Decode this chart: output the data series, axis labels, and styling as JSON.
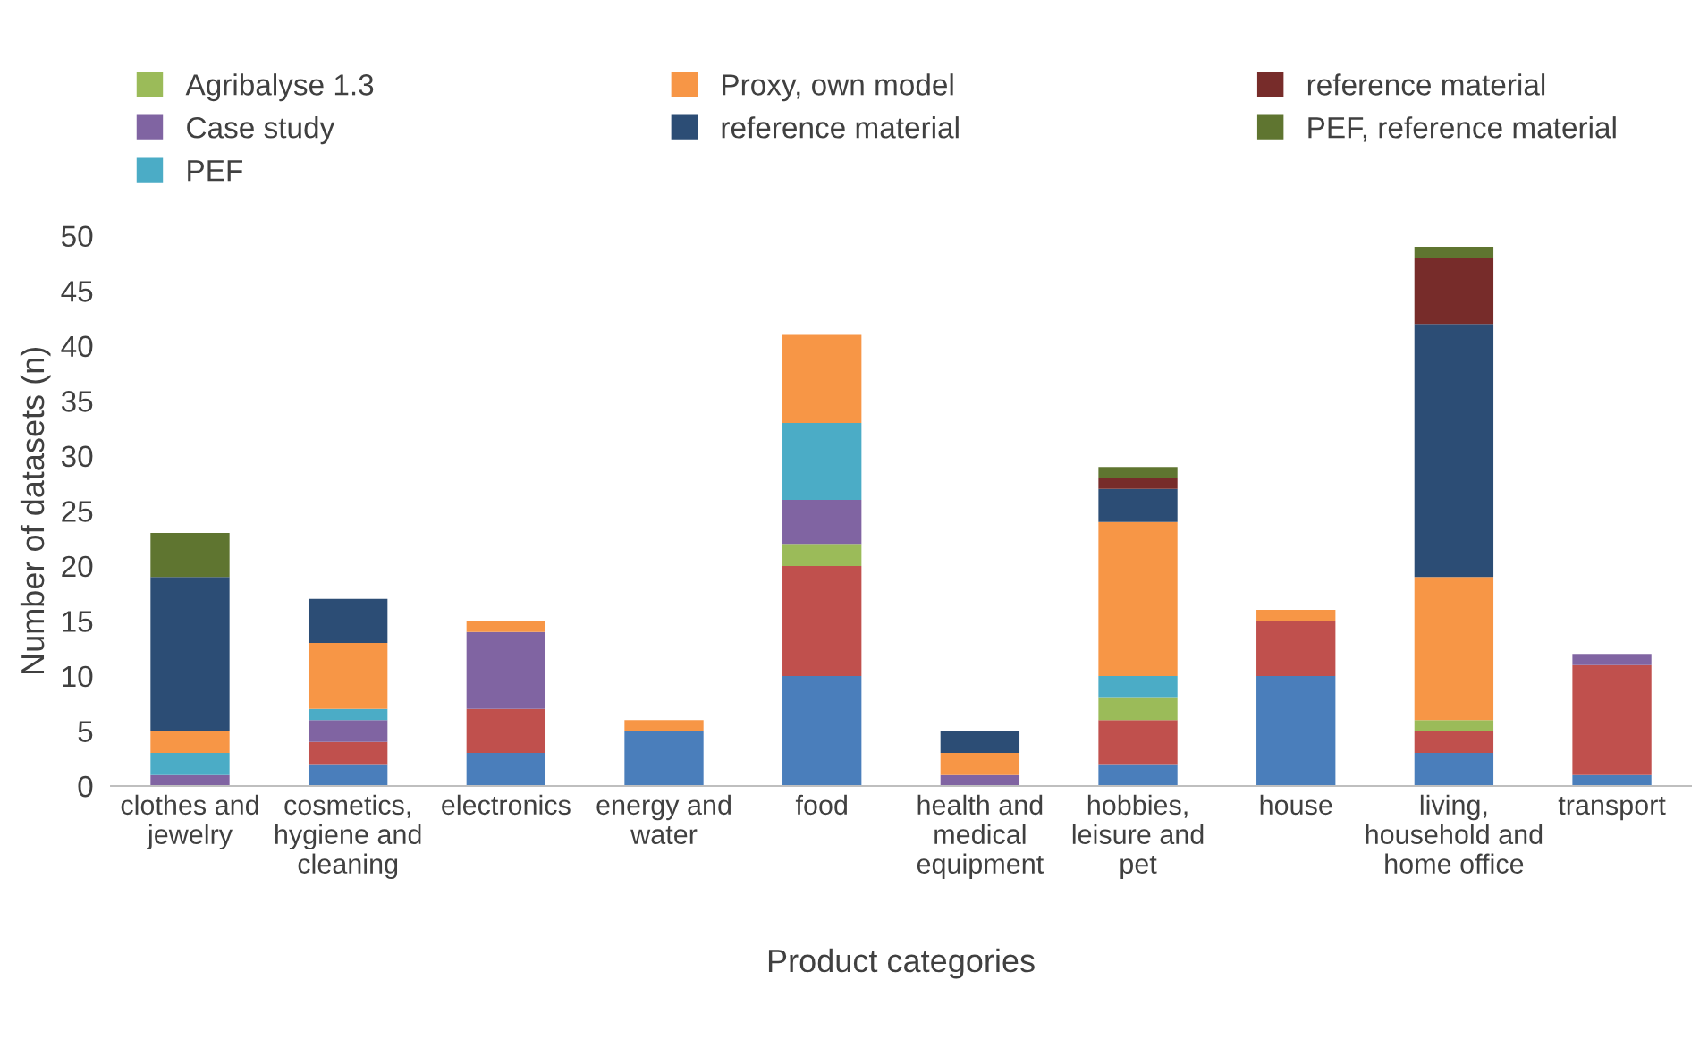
{
  "chart_data": {
    "type": "bar",
    "stacked": true,
    "xlabel": "Product categories",
    "ylabel": "Number of datasets (n)",
    "categories": [
      "clothes and jewelry",
      "cosmetics, hygiene and cleaning",
      "electronics",
      "energy and water",
      "food",
      "health and medical equipment",
      "hobbies, leisure and pet",
      "house",
      "living, household and home office",
      "transport"
    ],
    "series": [
      {
        "color": "#4a7ebb",
        "values": [
          0,
          2,
          3,
          5,
          10,
          0,
          2,
          10,
          3,
          1
        ]
      },
      {
        "color": "#c0504d",
        "values": [
          0,
          2,
          4,
          0,
          10,
          0,
          4,
          5,
          2,
          10
        ]
      },
      {
        "name": "Agribalyse 1.3",
        "color": "#9bbb59",
        "values": [
          0,
          0,
          0,
          0,
          2,
          0,
          2,
          0,
          1,
          0
        ]
      },
      {
        "name": "Case study",
        "color": "#8064a2",
        "values": [
          1,
          2,
          7,
          0,
          4,
          1,
          0,
          0,
          0,
          1
        ]
      },
      {
        "name": "PEF",
        "color": "#4bacc6",
        "values": [
          2,
          1,
          0,
          0,
          7,
          0,
          2,
          0,
          0,
          0
        ]
      },
      {
        "name": "Proxy, own model",
        "color": "#f79646",
        "values": [
          2,
          6,
          1,
          1,
          8,
          2,
          14,
          1,
          13,
          0
        ]
      },
      {
        "name": "reference material",
        "color": "#2c4d75",
        "values": [
          14,
          4,
          0,
          0,
          0,
          2,
          3,
          0,
          23,
          0
        ]
      },
      {
        "name": "reference material",
        "color": "#772c2a",
        "values": [
          0,
          0,
          0,
          0,
          0,
          0,
          1,
          0,
          6,
          0
        ]
      },
      {
        "name": "PEF, reference material",
        "color": "#5f7530",
        "values": [
          4,
          0,
          0,
          0,
          0,
          0,
          1,
          0,
          1,
          0
        ]
      }
    ],
    "ylim": [
      0,
      50
    ],
    "yticks": [
      0,
      5,
      10,
      15,
      20,
      25,
      30,
      35,
      40,
      45,
      50
    ],
    "grid": false,
    "legend": "top"
  }
}
